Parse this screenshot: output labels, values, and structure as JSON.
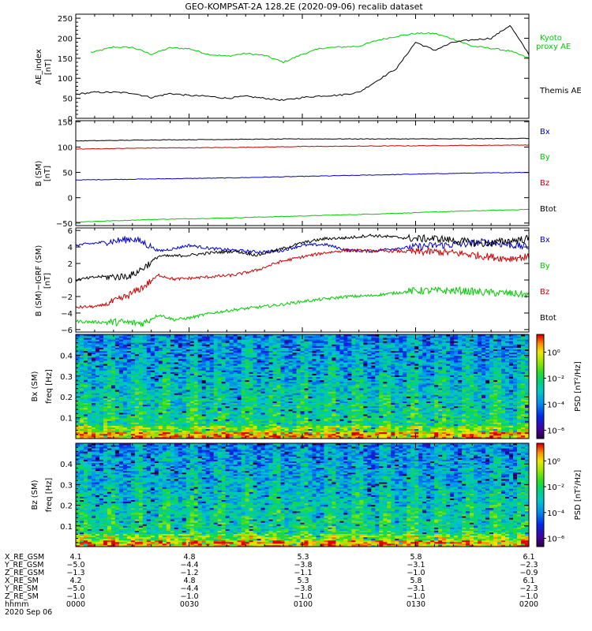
{
  "title": "GEO-KOMPSAT-2A 128.2E (2020-09-06) recalib dataset",
  "chart_data": [
    {
      "type": "line",
      "panel": "AE",
      "ylabel": "AE_index [nT]",
      "ylim": [
        0,
        260
      ],
      "yticks": [
        "0",
        "50",
        "100",
        "150",
        "200",
        "250"
      ],
      "x": [
        0,
        5,
        10,
        15,
        20,
        25,
        30,
        35,
        40,
        45,
        50,
        55,
        60,
        65,
        70,
        75,
        80,
        85,
        90,
        95,
        100,
        105,
        110,
        115,
        120
      ],
      "series": [
        {
          "name": "Kyoto proxy AE",
          "color": "#00cc00",
          "values": [
            160,
            166,
            178,
            177,
            160,
            176,
            174,
            160,
            155,
            162,
            157,
            140,
            160,
            175,
            178,
            180,
            195,
            205,
            212,
            212,
            198,
            180,
            175,
            168,
            150
          ]
        },
        {
          "name": "Themis AE",
          "color": "#000000",
          "values": [
            60,
            65,
            65,
            63,
            52,
            62,
            57,
            55,
            50,
            55,
            50,
            45,
            52,
            56,
            58,
            65,
            95,
            125,
            190,
            170,
            190,
            196,
            200,
            232,
            160
          ]
        }
      ]
    },
    {
      "type": "line",
      "panel": "B_SM",
      "ylabel": "B (SM) [nT]",
      "ylim": [
        -55,
        152
      ],
      "yticks": [
        "−50",
        "0",
        "50",
        "100",
        "150"
      ],
      "x": [
        0,
        20,
        40,
        60,
        80,
        100,
        120
      ],
      "series": [
        {
          "name": "Bx",
          "color": "#0000cc",
          "values": [
            35,
            37,
            39,
            42,
            45,
            48,
            50
          ]
        },
        {
          "name": "By",
          "color": "#00cc00",
          "values": [
            -48,
            -43,
            -40,
            -36,
            -32,
            -27,
            -23
          ]
        },
        {
          "name": "Bz",
          "color": "#cc0000",
          "values": [
            96,
            98,
            99,
            101,
            102,
            103,
            104
          ]
        },
        {
          "name": "Btot",
          "color": "#000000",
          "values": [
            112,
            114,
            115,
            116,
            116,
            116,
            117
          ]
        }
      ]
    },
    {
      "type": "line",
      "panel": "B_minus_IGRF",
      "ylabel": "B (SM)−IGRF (SM) [nT]",
      "ylim": [
        -6.3,
        6.3
      ],
      "yticks": [
        "−6",
        "−4",
        "−2",
        "0",
        "2",
        "4",
        "6"
      ],
      "x": [
        0,
        6,
        12,
        15,
        18,
        22,
        26,
        30,
        36,
        42,
        48,
        54,
        60,
        66,
        72,
        78,
        84,
        90,
        96,
        102,
        108,
        114,
        120
      ],
      "series": [
        {
          "name": "Bx",
          "color": "#0000cc",
          "values": [
            4.2,
            4.5,
            4.8,
            5.0,
            4.5,
            3.5,
            3.8,
            4.2,
            3.8,
            3.6,
            3.4,
            3.5,
            4.2,
            4.3,
            3.6,
            3.5,
            3.8,
            4.0,
            4.2,
            4.3,
            4.6,
            4.3,
            4.0
          ]
        },
        {
          "name": "By",
          "color": "#00cc00",
          "values": [
            -5.0,
            -5.1,
            -5.1,
            -5.2,
            -5.2,
            -4.2,
            -4.8,
            -4.6,
            -4.0,
            -3.6,
            -3.3,
            -3.0,
            -2.6,
            -2.3,
            -2.0,
            -1.9,
            -1.6,
            -1.3,
            -1.3,
            -1.3,
            -1.5,
            -1.6,
            -1.8
          ]
        },
        {
          "name": "Bz",
          "color": "#cc0000",
          "values": [
            -3.3,
            -3.2,
            -2.3,
            -1.6,
            -0.8,
            0.6,
            0.1,
            0.2,
            0.4,
            0.6,
            1.2,
            2.2,
            2.8,
            3.3,
            3.6,
            3.5,
            3.5,
            3.4,
            3.4,
            3.2,
            2.9,
            2.6,
            2.8
          ]
        },
        {
          "name": "Btot",
          "color": "#000000",
          "values": [
            0.0,
            0.4,
            0.4,
            0.6,
            1.5,
            2.9,
            2.9,
            3.0,
            3.3,
            3.5,
            3.0,
            3.7,
            4.5,
            5.0,
            5.1,
            5.4,
            5.2,
            5.0,
            5.0,
            4.7,
            4.4,
            4.7,
            5.0
          ]
        }
      ]
    },
    {
      "type": "heatmap",
      "panel": "Bx_spectrogram",
      "ylabel": "Bx (SM) freq [Hz]",
      "ylim": [
        0,
        0.5
      ],
      "yticks": [
        "0.1",
        "0.2",
        "0.3",
        "0.4"
      ],
      "colorbar_label": "PSD [nT²/Hz]",
      "colorbar_ticks": [
        "10⁰",
        "10⁻²",
        "10⁻⁴",
        "10⁻⁶"
      ],
      "log_scale": true
    },
    {
      "type": "heatmap",
      "panel": "Bz_spectrogram",
      "ylabel": "Bz (SM) freq [Hz]",
      "ylim": [
        0,
        0.5
      ],
      "yticks": [
        "0.1",
        "0.2",
        "0.3",
        "0.4"
      ],
      "colorbar_label": "PSD [nT²/Hz]",
      "colorbar_ticks": [
        "10⁰",
        "10⁻²",
        "10⁻⁴",
        "10⁻⁶"
      ],
      "log_scale": true
    }
  ],
  "ephemeris": {
    "row_labels": [
      "X_RE_GSM",
      "Y_RE_GSM",
      "Z_RE_GSM",
      "X_RE_SM",
      "Y_RE_SM",
      "Z_RE_SM",
      "hhmm"
    ],
    "columns": [
      [
        "4.1",
        "−5.0",
        "−1.3",
        "4.2",
        "−5.0",
        "−1.0",
        "0000"
      ],
      [
        "4.8",
        "−4.4",
        "−1.2",
        "4.8",
        "−4.4",
        "−1.0",
        "0030"
      ],
      [
        "5.3",
        "−3.8",
        "−1.1",
        "5.3",
        "−3.8",
        "−1.0",
        "0100"
      ],
      [
        "5.8",
        "−3.1",
        "−1.0",
        "5.8",
        "−3.1",
        "−1.0",
        "0130"
      ],
      [
        "6.1",
        "−2.3",
        "−0.9",
        "6.1",
        "−2.3",
        "−1.0",
        "0200"
      ]
    ],
    "date": "2020 Sep 06"
  }
}
